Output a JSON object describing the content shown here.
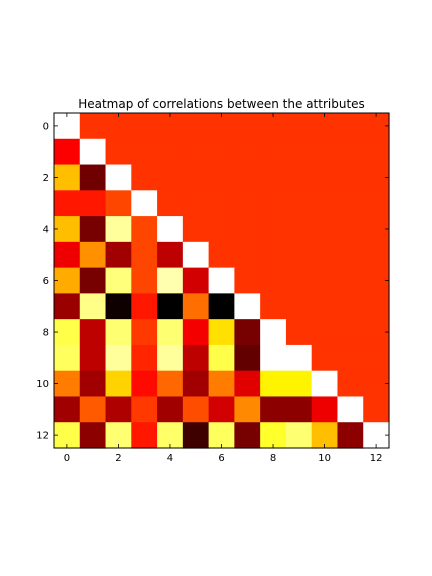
{
  "chart_data": {
    "type": "heatmap",
    "title": "Heatmap of correlations between the attributes",
    "xlabel": "",
    "ylabel": "",
    "colormap": "hot",
    "color_scale": {
      "min": 0.0,
      "max": 1.0
    },
    "masked_upper_triangle_color": "#ff3300",
    "diagonal_color": "#ffffff",
    "rows": 13,
    "cols": 13,
    "xlim": [
      -0.5,
      12.5
    ],
    "ylim": [
      12.5,
      -0.5
    ],
    "x_ticks": [
      "0",
      "2",
      "4",
      "6",
      "8",
      "10",
      "12"
    ],
    "x_tick_values": [
      0,
      2,
      4,
      6,
      8,
      10,
      12
    ],
    "y_ticks": [
      "0",
      "2",
      "4",
      "6",
      "8",
      "10",
      "12"
    ],
    "y_tick_values": [
      0,
      2,
      4,
      6,
      8,
      10,
      12
    ],
    "lower_triangle": [
      [],
      [
        0.36
      ],
      [
        0.65,
        0.16
      ],
      [
        0.4,
        0.4,
        0.47
      ],
      [
        0.65,
        0.17,
        0.9,
        0.47
      ],
      [
        0.34,
        0.58,
        0.23,
        0.47,
        0.27
      ],
      [
        0.62,
        0.17,
        0.87,
        0.47,
        0.92,
        0.3
      ],
      [
        0.22,
        0.88,
        0.02,
        0.4,
        0.0,
        0.53,
        0.0
      ],
      [
        0.82,
        0.27,
        0.86,
        0.45,
        0.86,
        0.35,
        0.7,
        0.17
      ],
      [
        0.84,
        0.27,
        0.9,
        0.42,
        0.9,
        0.27,
        0.82,
        0.14,
        1.0
      ],
      [
        0.55,
        0.23,
        0.68,
        0.38,
        0.52,
        0.23,
        0.55,
        0.32,
        0.73,
        0.73
      ],
      [
        0.23,
        0.5,
        0.25,
        0.45,
        0.23,
        0.48,
        0.3,
        0.57,
        0.2,
        0.2,
        0.34
      ],
      [
        0.82,
        0.2,
        0.86,
        0.4,
        0.85,
        0.09,
        0.84,
        0.17,
        0.79,
        0.86,
        0.65,
        0.2
      ]
    ]
  }
}
